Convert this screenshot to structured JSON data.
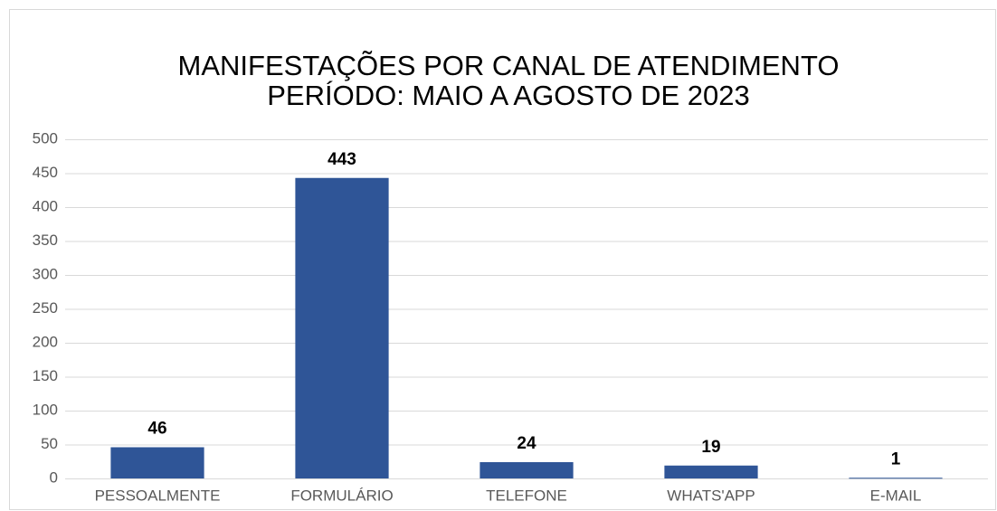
{
  "chart_data": {
    "type": "bar",
    "title": "MANIFESTAÇÕES POR CANAL DE ATENDIMENTO",
    "subtitle": "PERÍODO: MAIO A AGOSTO DE 2023",
    "categories": [
      "PESSOALMENTE",
      "FORMULÁRIO",
      "TELEFONE",
      "WHATS'APP",
      "E-MAIL"
    ],
    "values": [
      46,
      443,
      24,
      19,
      1
    ],
    "color": "#2f5597",
    "ylim": [
      0,
      500
    ],
    "yticks": [
      0,
      50,
      100,
      150,
      200,
      250,
      300,
      350,
      400,
      450,
      500
    ],
    "grid": true
  }
}
